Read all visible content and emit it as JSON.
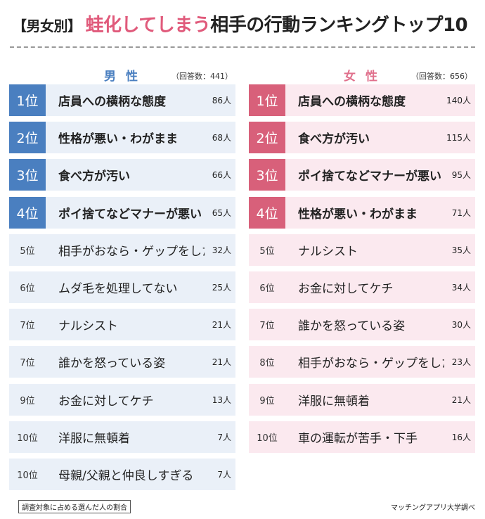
{
  "title": {
    "tag": "【男女別】",
    "accent": "蛙化してしまう",
    "rest": "相手の行動ランキングトップ10"
  },
  "male": {
    "label": "男 性",
    "respondents": "（回答数：441）",
    "rows": [
      {
        "rank": "1位",
        "item": "店員への横柄な態度",
        "count": "86人",
        "top": true
      },
      {
        "rank": "2位",
        "item": "性格が悪い・わがまま",
        "count": "68人",
        "top": true
      },
      {
        "rank": "3位",
        "item": "食べ方が汚い",
        "count": "66人",
        "top": true
      },
      {
        "rank": "4位",
        "item": "ポイ捨てなどマナーが悪い",
        "count": "65人",
        "top": true
      },
      {
        "rank": "5位",
        "item": "相手がおなら・ゲップをした",
        "count": "32人",
        "top": false
      },
      {
        "rank": "6位",
        "item": "ムダ毛を処理してない",
        "count": "25人",
        "top": false
      },
      {
        "rank": "7位",
        "item": "ナルシスト",
        "count": "21人",
        "top": false
      },
      {
        "rank": "7位",
        "item": "誰かを怒っている姿",
        "count": "21人",
        "top": false
      },
      {
        "rank": "9位",
        "item": "お金に対してケチ",
        "count": "13人",
        "top": false
      },
      {
        "rank": "10位",
        "item": "洋服に無頓着",
        "count": "7人",
        "top": false
      },
      {
        "rank": "10位",
        "item": "母親/父親と仲良しすぎる",
        "count": "7人",
        "top": false
      }
    ]
  },
  "female": {
    "label": "女 性",
    "respondents": "（回答数：656）",
    "rows": [
      {
        "rank": "1位",
        "item": "店員への横柄な態度",
        "count": "140人",
        "top": true
      },
      {
        "rank": "2位",
        "item": "食べ方が汚い",
        "count": "115人",
        "top": true
      },
      {
        "rank": "3位",
        "item": "ポイ捨てなどマナーが悪い",
        "count": "95人",
        "top": true
      },
      {
        "rank": "4位",
        "item": "性格が悪い・わがまま",
        "count": "71人",
        "top": true
      },
      {
        "rank": "5位",
        "item": "ナルシスト",
        "count": "35人",
        "top": false
      },
      {
        "rank": "6位",
        "item": "お金に対してケチ",
        "count": "34人",
        "top": false
      },
      {
        "rank": "7位",
        "item": "誰かを怒っている姿",
        "count": "30人",
        "top": false
      },
      {
        "rank": "8位",
        "item": "相手がおなら・ゲップをした",
        "count": "23人",
        "top": false
      },
      {
        "rank": "9位",
        "item": "洋服に無頓着",
        "count": "21人",
        "top": false
      },
      {
        "rank": "10位",
        "item": "車の運転が苦手・下手",
        "count": "16人",
        "top": false
      }
    ]
  },
  "footnote": "調査対象に占める選んだ人の割合",
  "source": "マッチングアプリ大学調べ"
}
